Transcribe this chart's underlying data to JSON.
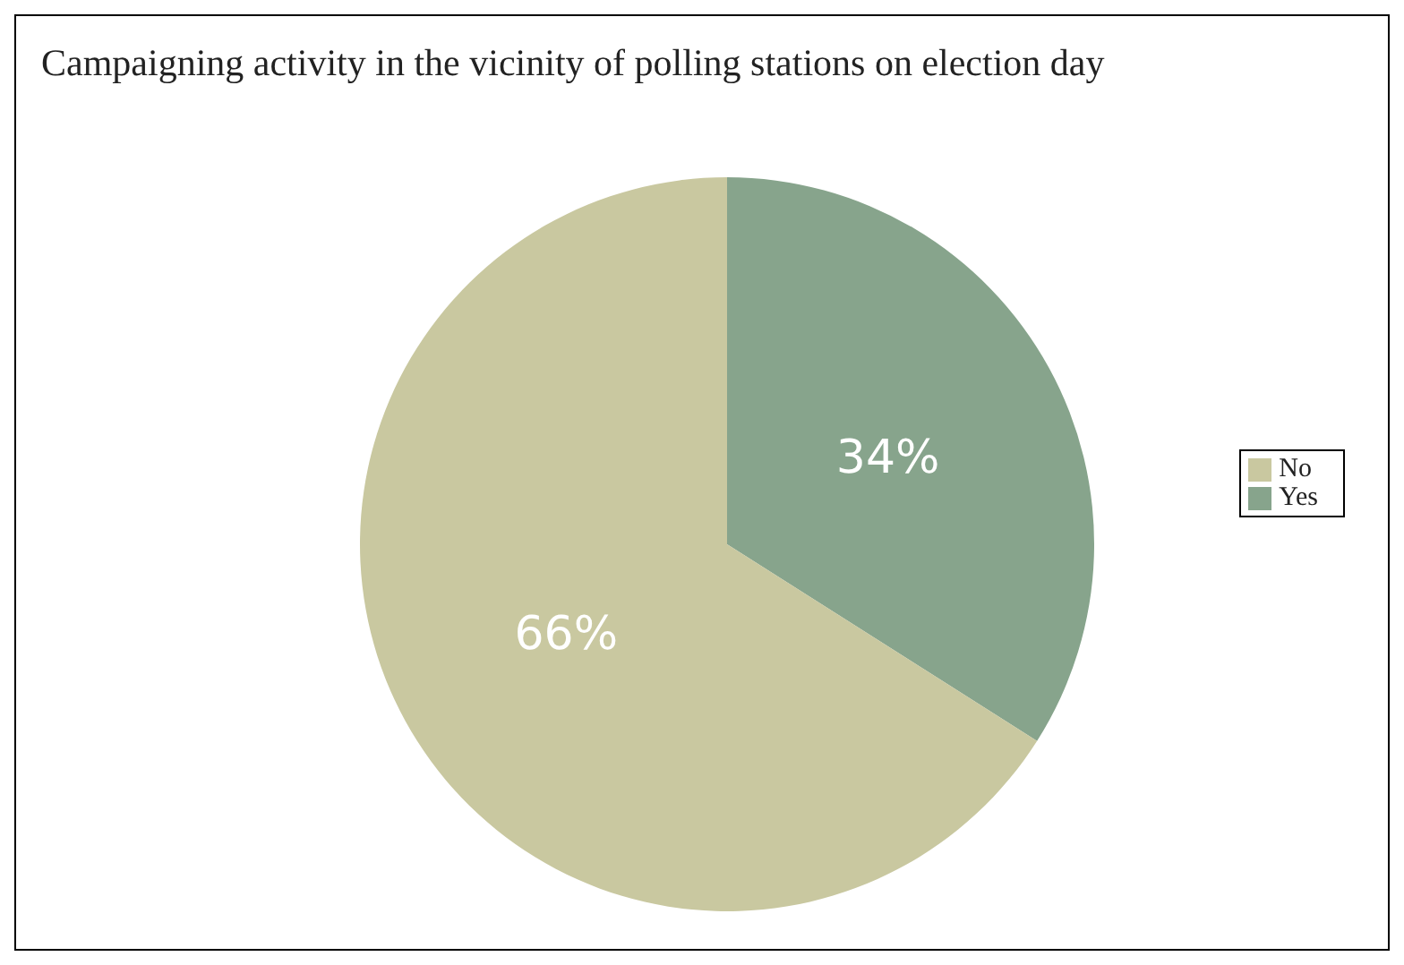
{
  "chart_data": {
    "type": "pie",
    "title": "Campaigning activity in the vicinity of polling stations on election day",
    "categories": [
      "Yes",
      "No"
    ],
    "values": [
      34,
      66
    ],
    "value_labels": [
      "34%",
      "66%"
    ],
    "colors": [
      "#87a48c",
      "#c9c8a0"
    ],
    "legend": "right"
  }
}
